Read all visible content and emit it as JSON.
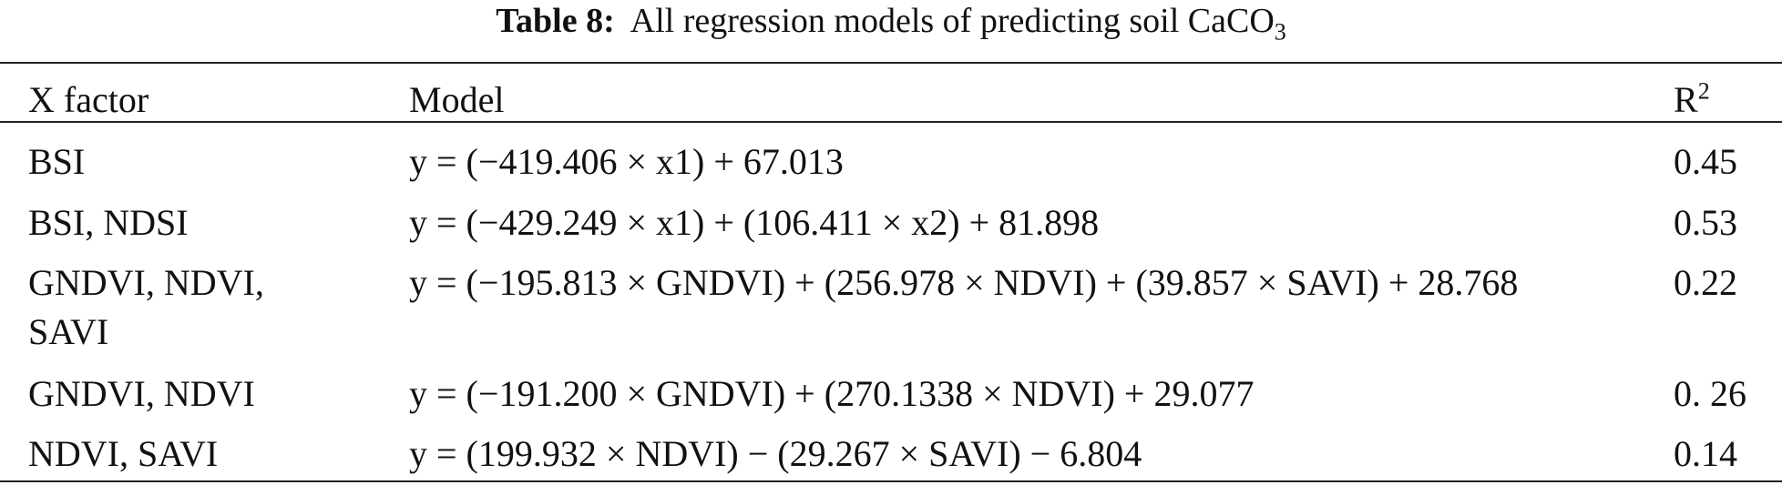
{
  "caption": {
    "label": "Table 8:",
    "text": "All regression models of predicting soil CaCO",
    "subscript": "3"
  },
  "table": {
    "header": [
      "X factor",
      "Model",
      "R",
      "2"
    ],
    "rows": [
      [
        "BSI",
        "y = (−419.406 × x1) + 67.013",
        "0.45"
      ],
      [
        "BSI, NDSI",
        "y = (−429.249 × x1) + (106.411 × x2) + 81.898",
        "0.53"
      ],
      [
        "GNDVI, NDVI, SAVI",
        "y = (−195.813 × GNDVI) + (256.978 × NDVI) + (39.857 × SAVI) + 28.768",
        "0.22"
      ],
      [
        "GNDVI, NDVI",
        "y = (−191.200 × GNDVI) + (270.1338 × NDVI) + 29.077",
        "0. 26"
      ],
      [
        "NDVI, SAVI",
        "y = (199.932 × NDVI) − (29.267 × SAVI) − 6.804",
        "0.14"
      ]
    ]
  }
}
